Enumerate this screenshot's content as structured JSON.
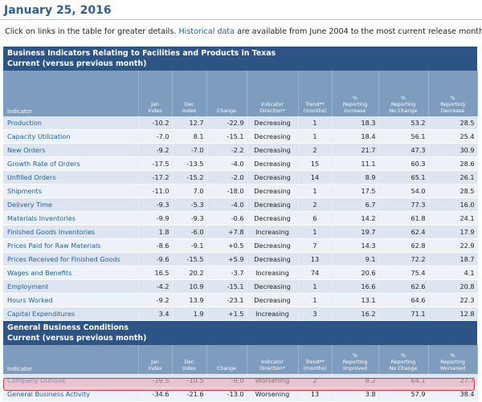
{
  "page": {
    "date": "January 25, 2016",
    "intro_before": "Click on links in the table for greater details. ",
    "intro_link": "Historical data",
    "intro_after": " are available from June 2004 to the most current release month."
  },
  "section1": {
    "title_line1": "Business Indicators Relating to Facilities and Products in Texas",
    "title_line2": "Current (versus previous month)",
    "headers": {
      "indicator": "Indicator",
      "jan": [
        "Jan",
        "Index"
      ],
      "dec": [
        "Dec",
        "Index"
      ],
      "change": "Change",
      "direction": [
        "Indicator",
        "Direction*"
      ],
      "trend": [
        "Trend**",
        "(months)"
      ],
      "increase": [
        "%",
        "Reporting",
        "Increase"
      ],
      "nochange": [
        "%",
        "Reporting",
        "No Change"
      ],
      "decrease": [
        "%",
        "Reporting",
        "Decrease"
      ]
    },
    "rows": [
      {
        "indicator": "Production",
        "jan": "-10.2",
        "dec": "12.7",
        "change": "-22.9",
        "direction": "Decreasing",
        "trend": "1",
        "increase": "18.3",
        "nochange": "53.2",
        "decrease": "28.5"
      },
      {
        "indicator": "Capacity Utilization",
        "jan": "-7.0",
        "dec": "8.1",
        "change": "-15.1",
        "direction": "Decreasing",
        "trend": "1",
        "increase": "18.4",
        "nochange": "56.1",
        "decrease": "25.4"
      },
      {
        "indicator": "New Orders",
        "jan": "-9.2",
        "dec": "-7.0",
        "change": "-2.2",
        "direction": "Decreasing",
        "trend": "2",
        "increase": "21.7",
        "nochange": "47.3",
        "decrease": "30.9"
      },
      {
        "indicator": "Growth Rate of Orders",
        "jan": "-17.5",
        "dec": "-13.5",
        "change": "-4.0",
        "direction": "Decreasing",
        "trend": "15",
        "increase": "11.1",
        "nochange": "60.3",
        "decrease": "28.6"
      },
      {
        "indicator": "Unfilled Orders",
        "jan": "-17.2",
        "dec": "-15.2",
        "change": "-2.0",
        "direction": "Decreasing",
        "trend": "14",
        "increase": "8.9",
        "nochange": "65.1",
        "decrease": "26.1"
      },
      {
        "indicator": "Shipments",
        "jan": "-11.0",
        "dec": "7.0",
        "change": "-18.0",
        "direction": "Decreasing",
        "trend": "1",
        "increase": "17.5",
        "nochange": "54.0",
        "decrease": "28.5"
      },
      {
        "indicator": "Delivery Time",
        "jan": "-9.3",
        "dec": "-5.3",
        "change": "-4.0",
        "direction": "Decreasing",
        "trend": "2",
        "increase": "6.7",
        "nochange": "77.3",
        "decrease": "16.0"
      },
      {
        "indicator": "Materials Inventories",
        "jan": "-9.9",
        "dec": "-9.3",
        "change": "-0.6",
        "direction": "Decreasing",
        "trend": "6",
        "increase": "14.2",
        "nochange": "61.8",
        "decrease": "24.1"
      },
      {
        "indicator": "Finished Goods Inventories",
        "jan": "1.8",
        "dec": "-6.0",
        "change": "+7.8",
        "direction": "Increasing",
        "trend": "1",
        "increase": "19.7",
        "nochange": "62.4",
        "decrease": "17.9"
      },
      {
        "indicator": "Prices Paid for Raw Materials",
        "jan": "-8.6",
        "dec": "-9.1",
        "change": "+0.5",
        "direction": "Decreasing",
        "trend": "7",
        "increase": "14.3",
        "nochange": "62.8",
        "decrease": "22.9"
      },
      {
        "indicator": "Prices Received for Finished Goods",
        "jan": "-9.6",
        "dec": "-15.5",
        "change": "+5.9",
        "direction": "Decreasing",
        "trend": "13",
        "increase": "9.1",
        "nochange": "72.2",
        "decrease": "18.7"
      },
      {
        "indicator": "Wages and Benefits",
        "jan": "16.5",
        "dec": "20.2",
        "change": "-3.7",
        "direction": "Increasing",
        "trend": "74",
        "increase": "20.6",
        "nochange": "75.4",
        "decrease": "4.1"
      },
      {
        "indicator": "Employment",
        "jan": "-4.2",
        "dec": "10.9",
        "change": "-15.1",
        "direction": "Decreasing",
        "trend": "1",
        "increase": "16.6",
        "nochange": "62.6",
        "decrease": "20.8"
      },
      {
        "indicator": "Hours Worked",
        "jan": "-9.2",
        "dec": "13.9",
        "change": "-23.1",
        "direction": "Decreasing",
        "trend": "1",
        "increase": "13.1",
        "nochange": "64.6",
        "decrease": "22.3"
      },
      {
        "indicator": "Capital Expenditures",
        "jan": "3.4",
        "dec": "1.9",
        "change": "+1.5",
        "direction": "Increasing",
        "trend": "3",
        "increase": "16.2",
        "nochange": "71.1",
        "decrease": "12.8"
      }
    ]
  },
  "section2": {
    "title_line1": "General Business Conditions",
    "title_line2": "Current (versus previous month)",
    "headers": {
      "indicator": "Indicator",
      "jan": [
        "Jan",
        "Index"
      ],
      "dec": [
        "Dec",
        "Index"
      ],
      "change": "Change",
      "direction": [
        "Indicator",
        "Direction*"
      ],
      "trend": [
        "Trend**",
        "(months)"
      ],
      "increase": [
        "%",
        "Reporting",
        "Improved"
      ],
      "nochange": [
        "%",
        "Reporting",
        "No Change"
      ],
      "decrease": [
        "%",
        "Reporting",
        "Worsened"
      ]
    },
    "rows": [
      {
        "indicator": "Company Outlook",
        "jan": "-19.5",
        "dec": "-10.5",
        "change": "-9.0",
        "direction": "Worsening",
        "trend": "2",
        "increase": "8.2",
        "nochange": "64.1",
        "decrease": "27.7"
      },
      {
        "indicator": "General Business Activity",
        "jan": "-34.6",
        "dec": "-21.6",
        "change": "-13.0",
        "direction": "Worsening",
        "trend": "13",
        "increase": "3.8",
        "nochange": "57.9",
        "decrease": "38.4"
      }
    ]
  },
  "colors": {
    "section_header": "#2c5586",
    "column_header": "#7e9cbd",
    "row_odd": "#dde6f0",
    "row_even": "#edf2f8",
    "link": "#1f5e9c",
    "highlight_border": "#c23b4a"
  }
}
